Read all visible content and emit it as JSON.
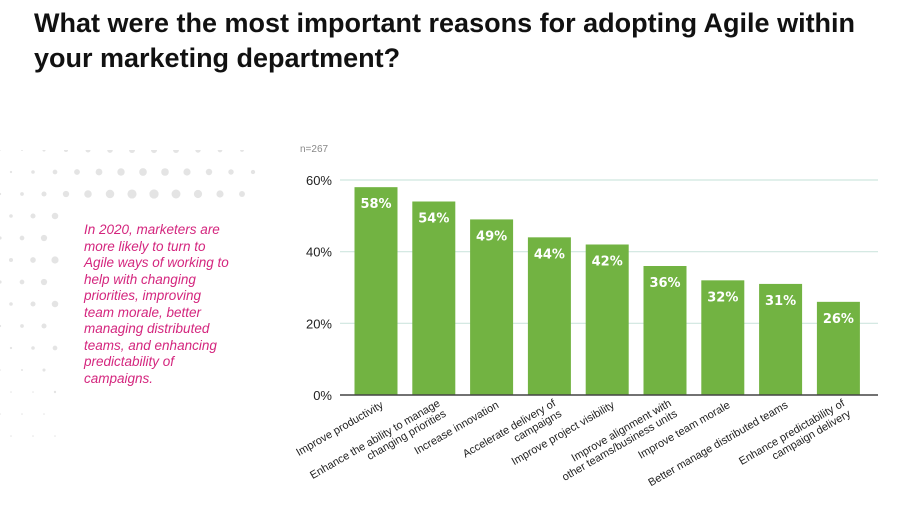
{
  "title": "What were the most important reasons for adopting Agile within your marketing department?",
  "callout": "In 2020, marketers are more likely to turn to Agile ways of working to help with changing priorities, improving team morale, better managing distributed teams, and enhancing predictability of campaigns.",
  "chart_data": {
    "type": "bar",
    "note": "n=267",
    "categories": [
      "Improve productivity",
      "Enhance the ability to manage changing priorities",
      "Increase innovation",
      "Accelerate delivery of campaigns",
      "Improve project visibility",
      "Improve alignment with other teams/business units",
      "Improve team morale",
      "Better manage distributed teams",
      "Enhance predictability of campaign delivery"
    ],
    "category_lines": [
      [
        "Improve productivity"
      ],
      [
        "Enhance the ability to manage",
        "changing priorities"
      ],
      [
        "Increase innovation"
      ],
      [
        "Accelerate delivery of",
        "campaigns"
      ],
      [
        "Improve project visibility"
      ],
      [
        "Improve alignment with",
        "other teams/business units"
      ],
      [
        "Improve team morale"
      ],
      [
        "Better manage distributed teams"
      ],
      [
        "Enhance predictability of",
        "campaign delivery"
      ]
    ],
    "values": [
      58,
      54,
      49,
      44,
      42,
      36,
      32,
      31,
      26
    ],
    "data_labels": [
      "58%",
      "54%",
      "49%",
      "44%",
      "42%",
      "36%",
      "32%",
      "31%",
      "26%"
    ],
    "ylim": [
      0,
      60
    ],
    "yticks": [
      0,
      20,
      40,
      60
    ],
    "ytick_labels": [
      "0%",
      "20%",
      "40%",
      "60%"
    ],
    "grid": true,
    "xlabel": "",
    "ylabel": "",
    "bar_color": "#72b342",
    "grid_color": "#cfe6df",
    "accent_color": "#d4267e"
  }
}
